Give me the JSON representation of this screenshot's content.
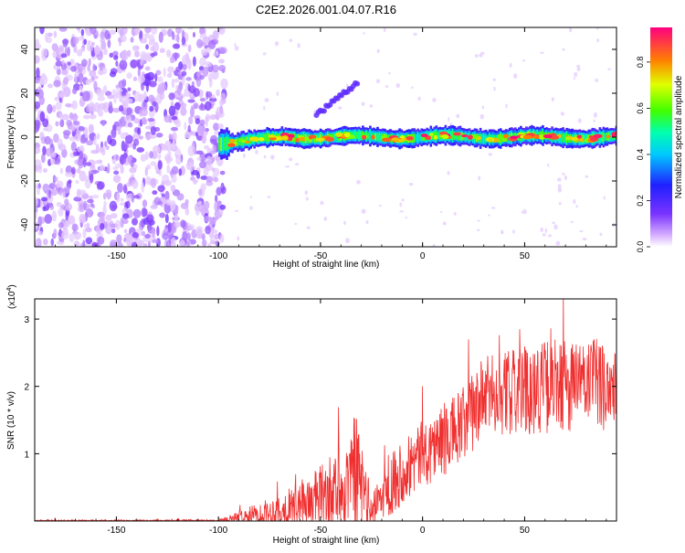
{
  "title": "C2E2.2026.001.04.07.R16",
  "chart_data": [
    {
      "type": "heatmap",
      "xlabel": "Height of straight line (km)",
      "ylabel": "Frequency (Hz)",
      "xlim": [
        -190,
        95
      ],
      "ylim": [
        -50,
        50
      ],
      "xticks": [
        -150,
        -100,
        -50,
        0,
        50
      ],
      "yticks": [
        -40,
        -20,
        0,
        20,
        40
      ],
      "colorbar": {
        "label": "Normalized spectral amplitude",
        "range": [
          0,
          0.95
        ],
        "ticks": [
          "0.0",
          "0.2",
          "0.4",
          "0.6",
          "0.8"
        ],
        "tick_values": [
          0,
          0.2,
          0.4,
          0.6,
          0.8
        ]
      },
      "features": {
        "noise_region": {
          "x_from": -190,
          "x_to": -97,
          "amplitude": "low (purple)"
        },
        "signal_band": {
          "x_from": -100,
          "x_to": 95,
          "center_freq_hz": 0,
          "half_width_hz": 4,
          "peak_amplitude": 0.95
        },
        "secondary_streak": {
          "x_from": -52,
          "x_to": -32,
          "freq_from_hz": 10,
          "freq_to_hz": 25
        }
      }
    },
    {
      "type": "line",
      "xlabel": "Height of straight line (km)",
      "ylabel": "SNR (10 * v/v)",
      "y_scale_label": "(x10",
      "y_scale_exp": "4",
      "y_scale_close": ")",
      "xlim": [
        -190,
        95
      ],
      "ylim": [
        0,
        3.3
      ],
      "xticks": [
        -150,
        -100,
        -50,
        0,
        50
      ],
      "yticks": [
        1,
        2,
        3
      ],
      "series": [
        {
          "name": "SNR",
          "color": "#f03030",
          "envelope": [
            {
              "x": -190,
              "base": 0.0,
              "amp": 0.02
            },
            {
              "x": -100,
              "base": 0.0,
              "amp": 0.02
            },
            {
              "x": -90,
              "base": 0.05,
              "amp": 0.1
            },
            {
              "x": -70,
              "base": 0.15,
              "amp": 0.25
            },
            {
              "x": -55,
              "base": 0.3,
              "amp": 0.4
            },
            {
              "x": -40,
              "base": 0.5,
              "amp": 0.6
            },
            {
              "x": -30,
              "base": 0.55,
              "amp": 0.8
            },
            {
              "x": -25,
              "base": 0.15,
              "amp": 0.2
            },
            {
              "x": -15,
              "base": 0.6,
              "amp": 0.5
            },
            {
              "x": 0,
              "base": 1.0,
              "amp": 0.5
            },
            {
              "x": 20,
              "base": 1.4,
              "amp": 0.6
            },
            {
              "x": 30,
              "base": 1.85,
              "amp": 0.6
            },
            {
              "x": 60,
              "base": 2.0,
              "amp": 0.7
            },
            {
              "x": 95,
              "base": 2.05,
              "amp": 0.7
            }
          ]
        }
      ]
    }
  ]
}
